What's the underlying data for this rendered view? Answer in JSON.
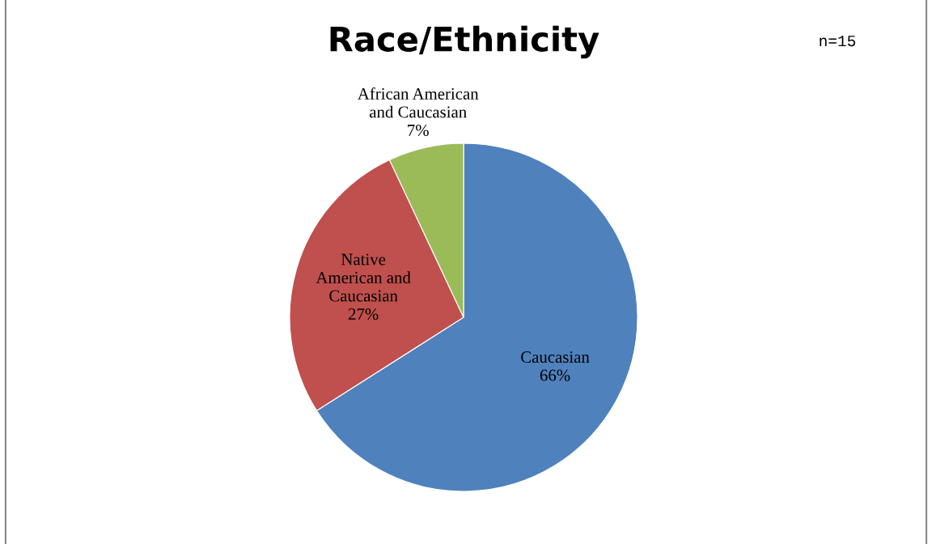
{
  "chart_data": {
    "type": "pie",
    "title": "Race/Ethnicity",
    "categories": [
      "Caucasian",
      "Native American and Caucasian",
      "African American and Caucasian"
    ],
    "values": [
      66,
      27,
      7
    ],
    "colors": [
      "#4f81bd",
      "#c0504d",
      "#9bbb59"
    ],
    "value_labels": [
      "66%",
      "27%",
      "7%"
    ],
    "annotations": [
      "n=15"
    ],
    "legend": false
  }
}
